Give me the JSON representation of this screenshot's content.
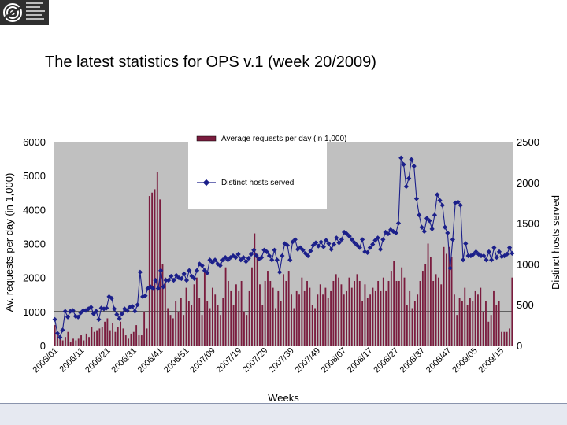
{
  "page": {
    "title": "The latest statistics for OPS v.1 (week 20/2009)"
  },
  "chart_data": {
    "type": "bar",
    "title": "",
    "xlabel": "Weeks",
    "ylabel_left": "Av. requests per day (in 1,000)",
    "ylabel_right": "Distinct hosts served",
    "ylim_left": [
      0,
      6000
    ],
    "ylim_right": [
      0,
      2500
    ],
    "yticks_left": [
      "0",
      "1000",
      "2000",
      "3000",
      "4000",
      "5000",
      "6000"
    ],
    "yticks_right": [
      "0",
      "500",
      "1000",
      "1500",
      "2000",
      "2500"
    ],
    "x_tick_labels": [
      "2005/01",
      "2006/11",
      "2006/21",
      "2006/31",
      "2006/41",
      "2006/51",
      "2007/09",
      "2007/19",
      "2007/29",
      "2007/39",
      "2007/49",
      "2008/07",
      "2008/17",
      "2008/27",
      "2008/37",
      "2008/47",
      "2009/05",
      "2009/15"
    ],
    "legend": [
      "Average requests per day (in 1,000)",
      "Distinct hosts served"
    ],
    "legend_position": "top-center",
    "plot_background": "#c0c0c0",
    "series": [
      {
        "name": "Average requests per day (in 1,000)",
        "kind": "bar",
        "color": "#7a1c3e",
        "values": [
          600,
          300,
          200,
          150,
          250,
          400,
          100,
          200,
          150,
          200,
          300,
          150,
          350,
          250,
          550,
          400,
          450,
          500,
          550,
          700,
          800,
          450,
          650,
          400,
          550,
          700,
          500,
          300,
          200,
          350,
          400,
          600,
          300,
          300,
          1000,
          500,
          4400,
          4500,
          4600,
          5100,
          4300,
          2400,
          2000,
          1100,
          900,
          800,
          1300,
          1000,
          1400,
          900,
          1700,
          1300,
          1200,
          1800,
          2000,
          1400,
          900,
          2200,
          1300,
          1100,
          1700,
          1500,
          1200,
          900,
          1400,
          2300,
          1900,
          1600,
          1200,
          1800,
          1600,
          1900,
          1000,
          900,
          1600,
          2300,
          3300,
          2700,
          1800,
          1200,
          1900,
          2200,
          1900,
          1700,
          1100,
          1600,
          1300,
          2100,
          1900,
          2200,
          1500,
          1100,
          1600,
          1500,
          2000,
          1600,
          1900,
          1700,
          1200,
          1100,
          1500,
          1800,
          1500,
          1700,
          1400,
          1600,
          1900,
          2100,
          2000,
          1800,
          1500,
          1600,
          2000,
          1700,
          1900,
          2100,
          1900,
          1300,
          1800,
          1400,
          1500,
          1700,
          1600,
          1900,
          1600,
          2000,
          1600,
          1900,
          2200,
          2500,
          1900,
          1900,
          2300,
          2000,
          1200,
          1600,
          1100,
          1300,
          1500,
          1900,
          2200,
          2400,
          3000,
          2600,
          1900,
          2100,
          2000,
          1800,
          2900,
          2700,
          2900,
          2600,
          1500,
          900,
          1400,
          1300,
          1700,
          1200,
          1400,
          1300,
          1600,
          1500,
          1700,
          1000,
          1300,
          700,
          900,
          1600,
          1200,
          1300,
          400,
          400,
          400,
          500,
          2000
        ]
      },
      {
        "name": "Distinct hosts served",
        "kind": "line",
        "color": "#1b1f8a",
        "values": [
          320,
          150,
          100,
          190,
          420,
          350,
          420,
          430,
          360,
          350,
          400,
          430,
          430,
          450,
          470,
          390,
          420,
          320,
          460,
          450,
          460,
          600,
          580,
          450,
          380,
          330,
          390,
          450,
          430,
          470,
          480,
          420,
          500,
          900,
          600,
          610,
          700,
          720,
          700,
          800,
          700,
          920,
          720,
          800,
          800,
          850,
          800,
          860,
          830,
          820,
          880,
          800,
          920,
          850,
          820,
          920,
          1000,
          980,
          920,
          890,
          1050,
          1020,
          1050,
          1000,
          980,
          1050,
          1080,
          1050,
          1080,
          1100,
          1080,
          1120,
          1050,
          1080,
          1030,
          1070,
          1120,
          1170,
          1100,
          1060,
          1080,
          1170,
          1150,
          1100,
          1050,
          1170,
          1050,
          900,
          1100,
          1250,
          1230,
          1050,
          1270,
          1300,
          1180,
          1200,
          1170,
          1130,
          1100,
          1160,
          1230,
          1260,
          1220,
          1270,
          1210,
          1290,
          1250,
          1180,
          1240,
          1320,
          1260,
          1300,
          1390,
          1370,
          1340,
          1300,
          1260,
          1230,
          1200,
          1300,
          1150,
          1140,
          1200,
          1240,
          1290,
          1320,
          1180,
          1300,
          1390,
          1370,
          1420,
          1400,
          1380,
          1500,
          2300,
          2220,
          1950,
          2050,
          2280,
          2200,
          1800,
          1600,
          1450,
          1400,
          1560,
          1530,
          1430,
          1600,
          1850,
          1780,
          1720,
          1450,
          1380,
          950,
          1300,
          1750,
          1760,
          1720,
          1050,
          1250,
          1100,
          1100,
          1120,
          1150,
          1120,
          1100,
          1100,
          1050,
          1150,
          1050,
          1200,
          1080,
          1150,
          1090,
          1100,
          1120,
          1200,
          1130
        ]
      }
    ]
  }
}
